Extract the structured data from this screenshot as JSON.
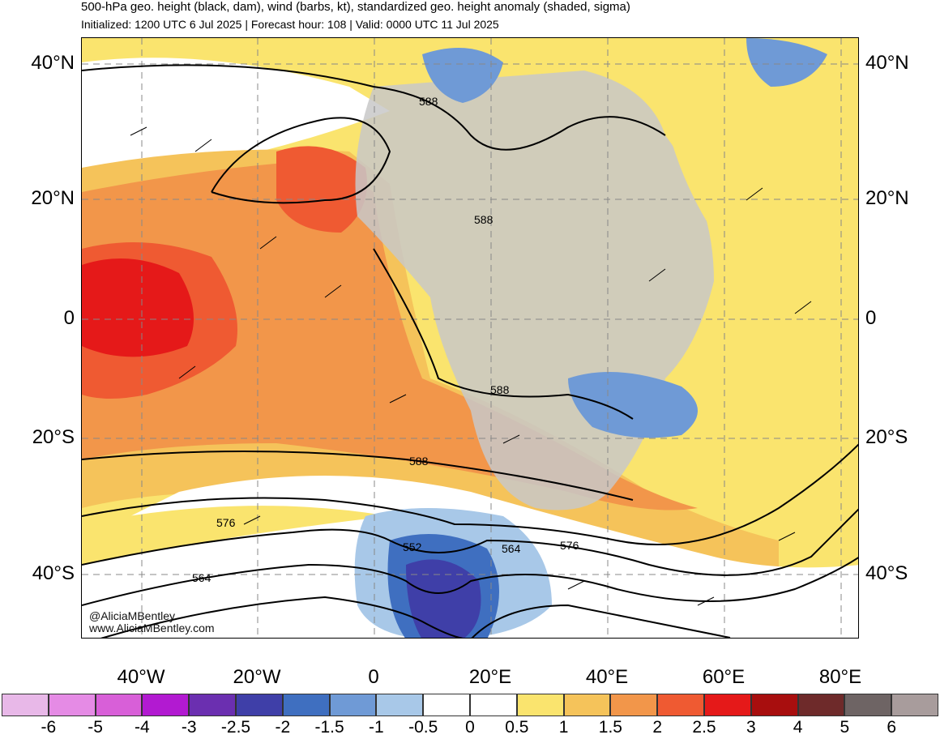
{
  "header": {
    "title": "500-hPa geo. height (black, dam), wind (barbs, kt), standardized geo. height anomaly (shaded, sigma)",
    "subtitle": "Initialized: 1200 UTC 6 Jul 2025 | Forecast hour: 108 | Valid: 0000 UTC 11 Jul 2025"
  },
  "map": {
    "lat_labels": [
      "40°N",
      "20°N",
      "0",
      "20°S",
      "40°S"
    ],
    "lon_labels": [
      "40°W",
      "20°W",
      "0",
      "20°E",
      "40°E",
      "60°E",
      "80°E"
    ],
    "contour_labels": [
      "588",
      "588",
      "588",
      "588",
      "576",
      "576",
      "564",
      "564",
      "552"
    ],
    "credits": [
      "@AliciaMBentley",
      "www.AliciaMBentley.com"
    ],
    "land_color": "#c8c8c8"
  },
  "colorbar": {
    "colors": [
      "#e8b8e8",
      "#e58be5",
      "#d85fd8",
      "#b21ad1",
      "#6b2fb0",
      "#3f3fa8",
      "#3f6fc0",
      "#6f9ad6",
      "#a8c8e8",
      "#ffffff",
      "#ffffff",
      "#fae46e",
      "#f5c35a",
      "#f2964a",
      "#ef5a32",
      "#e51919",
      "#a80e0e",
      "#6e2a2a",
      "#6e6464",
      "#a89c9c"
    ],
    "labels": [
      "-6",
      "-5",
      "-4",
      "-3",
      "-2.5",
      "-2",
      "-1.5",
      "-1",
      "-0.5",
      "0",
      "0.5",
      "1",
      "1.5",
      "2",
      "2.5",
      "3",
      "4",
      "5",
      "6"
    ]
  }
}
